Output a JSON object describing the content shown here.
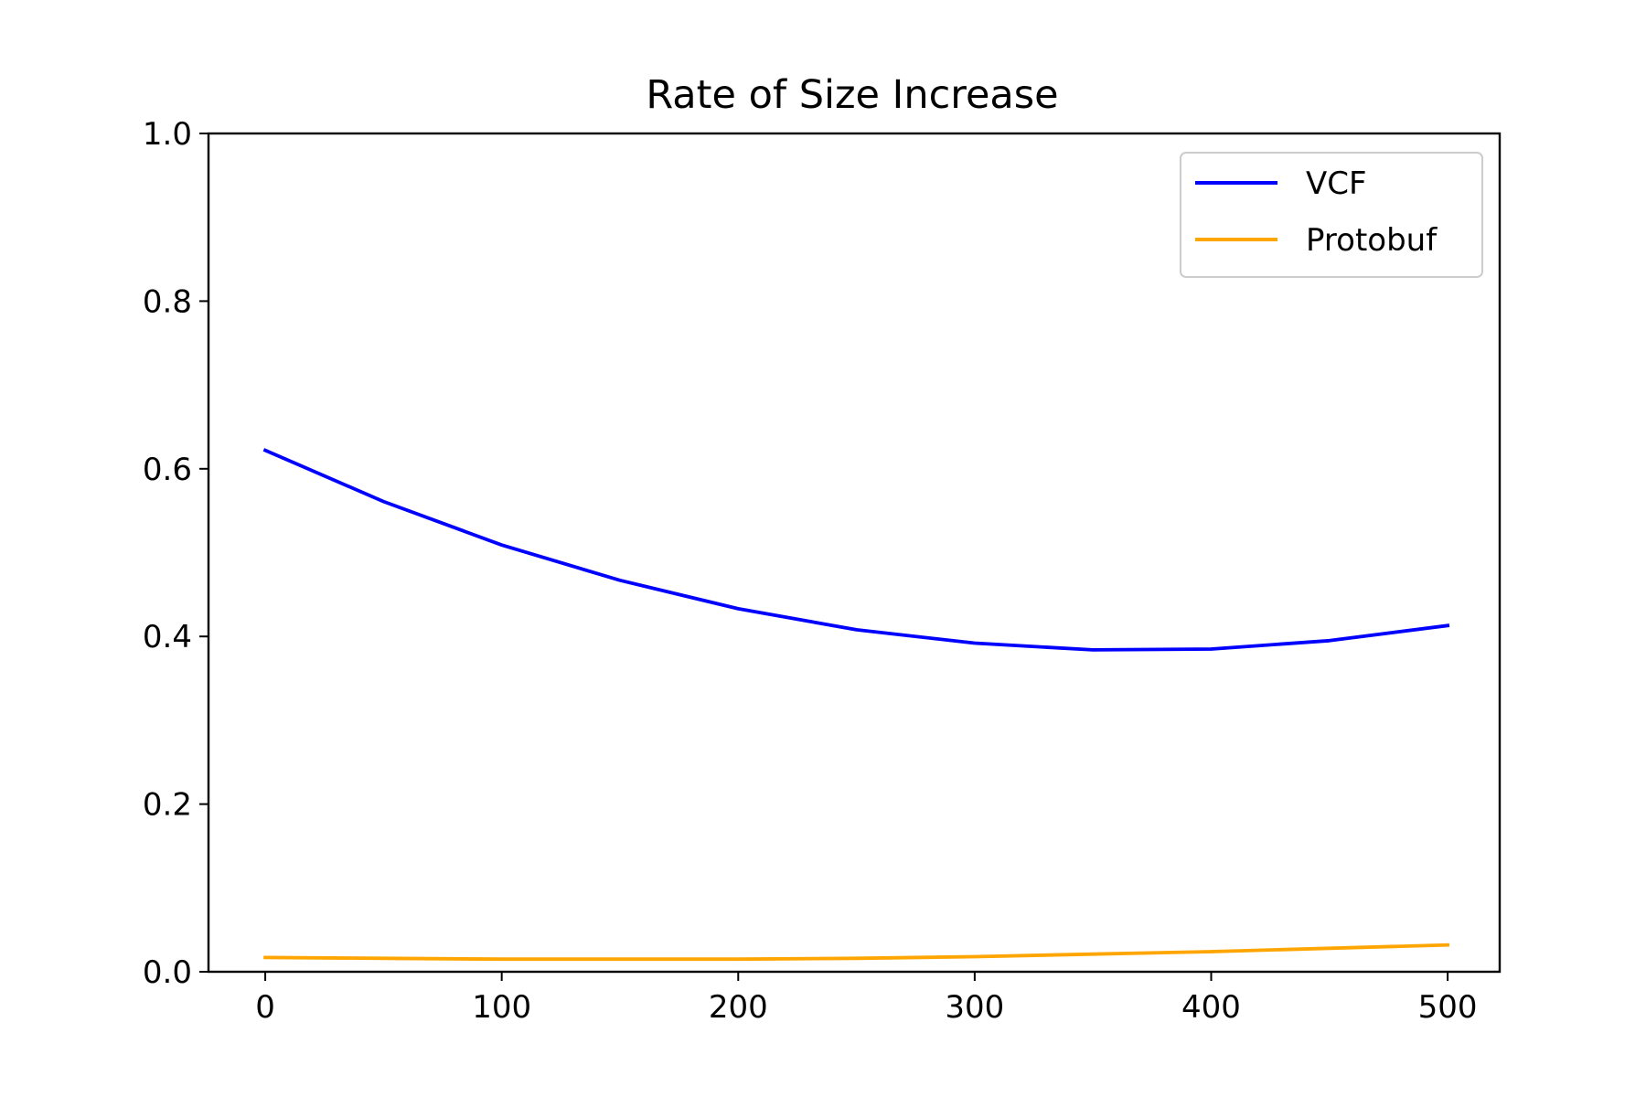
{
  "chart_data": {
    "type": "line",
    "title": "Rate of Size Increase",
    "xlabel": "",
    "ylabel": "",
    "xlim": [
      -24,
      522
    ],
    "ylim": [
      0.0,
      1.0
    ],
    "x_ticks": [
      0,
      100,
      200,
      300,
      400,
      500
    ],
    "x_tick_labels": [
      "0",
      "100",
      "200",
      "300",
      "400",
      "500"
    ],
    "y_ticks": [
      0.0,
      0.2,
      0.4,
      0.6,
      0.8,
      1.0
    ],
    "y_tick_labels": [
      "0.0",
      "0.2",
      "0.4",
      "0.6",
      "0.8",
      "1.0"
    ],
    "grid": false,
    "legend_position": "top-right",
    "x": [
      0,
      50,
      100,
      150,
      200,
      250,
      300,
      350,
      400,
      450,
      500
    ],
    "series": [
      {
        "name": "VCF",
        "color": "#0000ff",
        "values": [
          0.622,
          0.561,
          0.509,
          0.467,
          0.433,
          0.408,
          0.392,
          0.384,
          0.385,
          0.395,
          0.413
        ]
      },
      {
        "name": "Protobuf",
        "color": "#ffa500",
        "values": [
          0.017,
          0.016,
          0.015,
          0.015,
          0.015,
          0.016,
          0.018,
          0.021,
          0.024,
          0.028,
          0.032
        ]
      }
    ]
  }
}
